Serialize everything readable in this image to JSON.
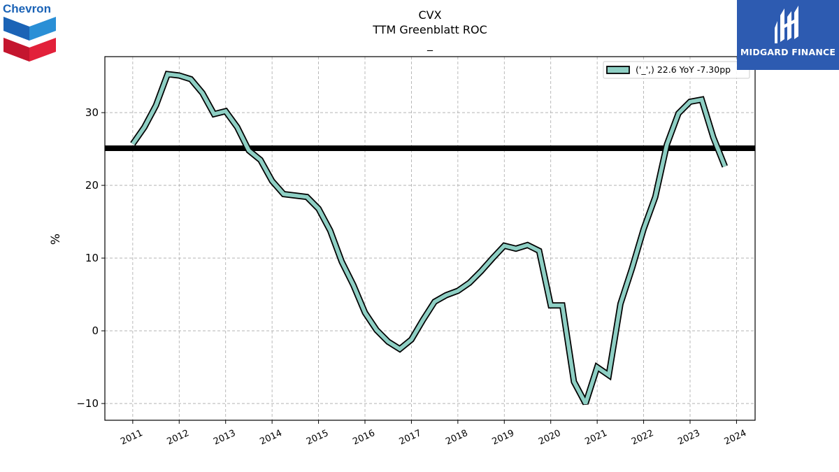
{
  "brand_left": {
    "name": "Chevron",
    "icon": "chevron-logo-icon"
  },
  "brand_right": {
    "name": "MIDGARD FINANCE",
    "icon": "midgard-logo-icon",
    "color": "#2d5bb1"
  },
  "chart_data": {
    "type": "line",
    "title": "CVX",
    "subtitle": "TTM Greenblatt ROC",
    "subtitle2": "_",
    "xlabel": "",
    "ylabel": "%",
    "xlim": [
      2010.4,
      2024.4
    ],
    "ylim": [
      -12.3,
      37.7
    ],
    "yticks": [
      -10,
      0,
      10,
      20,
      30
    ],
    "ytick_labels": [
      "−10",
      "0",
      "10",
      "20",
      "30"
    ],
    "xticks": [
      2011,
      2012,
      2013,
      2014,
      2015,
      2016,
      2017,
      2018,
      2019,
      2020,
      2021,
      2022,
      2023,
      2024
    ],
    "xtick_labels": [
      "2011",
      "2012",
      "2013",
      "2014",
      "2015",
      "2016",
      "2017",
      "2018",
      "2019",
      "2020",
      "2021",
      "2022",
      "2023",
      "2024"
    ],
    "grid": true,
    "legend_position": "top-right",
    "reference_line": {
      "y": 25.1,
      "color": "#000000"
    },
    "series": [
      {
        "name": "('_',) 22.6 YoY -7.30pp",
        "color": "#8ecfc4",
        "edge_color": "#000000",
        "x": [
          2011.0,
          2011.25,
          2011.5,
          2011.75,
          2012.0,
          2012.25,
          2012.5,
          2012.75,
          2013.0,
          2013.25,
          2013.5,
          2013.75,
          2014.0,
          2014.25,
          2014.5,
          2014.75,
          2015.0,
          2015.25,
          2015.5,
          2015.75,
          2016.0,
          2016.25,
          2016.5,
          2016.75,
          2017.0,
          2017.25,
          2017.5,
          2017.75,
          2018.0,
          2018.25,
          2018.5,
          2018.75,
          2019.0,
          2019.25,
          2019.5,
          2019.75,
          2020.0,
          2020.25,
          2020.5,
          2020.75,
          2021.0,
          2021.25,
          2021.5,
          2021.75,
          2022.0,
          2022.25,
          2022.5,
          2022.75,
          2023.0,
          2023.25,
          2023.5,
          2023.75
        ],
        "values": [
          25.7,
          28.0,
          31.0,
          35.3,
          35.1,
          34.6,
          32.7,
          29.8,
          30.2,
          28.0,
          24.8,
          23.5,
          20.6,
          18.8,
          18.6,
          18.4,
          16.8,
          13.8,
          9.5,
          6.3,
          2.5,
          0.1,
          -1.5,
          -2.5,
          -1.2,
          1.5,
          4.0,
          4.9,
          5.5,
          6.6,
          8.2,
          10.0,
          11.7,
          11.3,
          11.8,
          11.0,
          3.5,
          3.5,
          -7.0,
          -10.0,
          -5.0,
          -6.1,
          3.7,
          8.6,
          14.0,
          18.4,
          25.6,
          29.9,
          31.5,
          31.8,
          26.6,
          22.6
        ]
      }
    ]
  }
}
